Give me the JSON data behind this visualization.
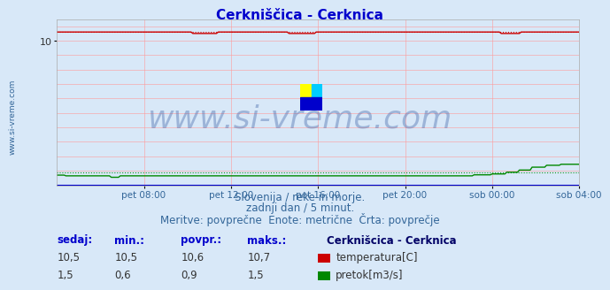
{
  "title": "Cerkniščica - Cerknica",
  "title_color": "#0000cc",
  "bg_color": "#d8e8f8",
  "plot_bg_color": "#d8e8f8",
  "grid_color": "#ff9999",
  "x_tick_labels": [
    "pet 08:00",
    "pet 12:00",
    "pet 16:00",
    "pet 20:00",
    "sob 00:00",
    "sob 04:00"
  ],
  "x_tick_positions": [
    48,
    96,
    144,
    192,
    240,
    288
  ],
  "xlim": [
    0,
    288
  ],
  "ylim": [
    0,
    11.5
  ],
  "watermark_text": "www.si-vreme.com",
  "watermark_color": "#4466aa",
  "watermark_alpha": 0.4,
  "watermark_fontsize": 26,
  "subtitle_lines": [
    "Slovenija / reke in morje.",
    "zadnji dan / 5 minut.",
    "Meritve: povprečne  Enote: metrične  Črta: povprečje"
  ],
  "subtitle_color": "#336699",
  "subtitle_fontsize": 8.5,
  "temp_color": "#cc0000",
  "temp_avg": 10.6,
  "temp_min": 10.5,
  "temp_max": 10.7,
  "flow_color": "#008800",
  "flow_avg": 0.9,
  "flow_min": 0.6,
  "flow_max": 1.5,
  "blue_line_color": "#0000cc",
  "table_header": [
    "sedaj:",
    "min.:",
    "povpr.:",
    "maks.:"
  ],
  "table_values_temp": [
    "10,5",
    "10,5",
    "10,6",
    "10,7"
  ],
  "table_values_flow": [
    "1,5",
    "0,6",
    "0,9",
    "1,5"
  ],
  "legend_station": "Cerknišcica - Cerknica",
  "legend_label_temp": "temperatura[C]",
  "legend_label_flow": "pretok[m3/s]",
  "legend_color_temp": "#cc0000",
  "legend_color_flow": "#008800",
  "sidebar_text": "www.si-vreme.com",
  "sidebar_color": "#336699",
  "sidebar_fontsize": 6.5,
  "header_color": "#0000cc",
  "table_fontsize": 8.5
}
